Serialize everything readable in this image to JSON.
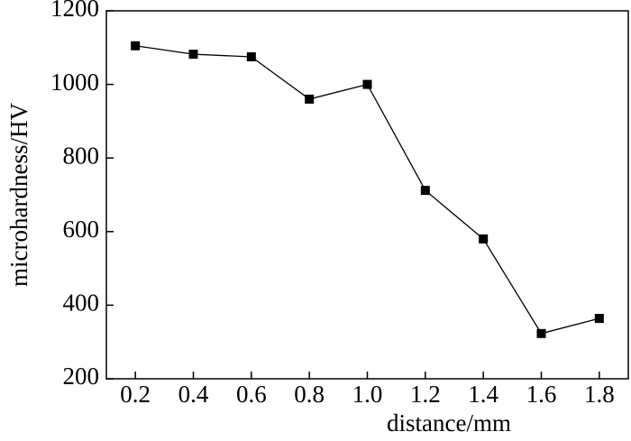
{
  "chart_data": {
    "type": "line",
    "x": [
      0.2,
      0.4,
      0.6,
      0.8,
      1.0,
      1.2,
      1.4,
      1.6,
      1.8
    ],
    "values": [
      1105,
      1082,
      1075,
      960,
      1000,
      712,
      580,
      323,
      364
    ],
    "color": "#000000",
    "x_label": "distance/mm",
    "y_label": "microhardness/HV",
    "xlim": [
      0.1,
      1.9
    ],
    "xticks": [
      0.2,
      0.4,
      0.6,
      0.8,
      {
        "value": 1.0,
        "label": "1.0"
      },
      1.2,
      1.4,
      1.6,
      1.8
    ],
    "ylim": [
      200,
      1200
    ],
    "yticks": [
      200,
      400,
      600,
      800,
      1000,
      1200
    ],
    "grid": false
  }
}
